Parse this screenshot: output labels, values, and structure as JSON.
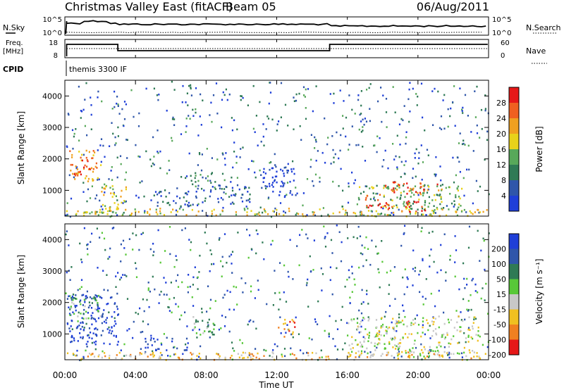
{
  "header": {
    "title": "Christmas Valley East (fitACF)",
    "beam": "Beam 05",
    "date": "06/Aug/2011"
  },
  "strips": {
    "nsky_label": "N.Sky",
    "nsky_ticks": [
      "10^5",
      "10^0"
    ],
    "nsearch_label": "N.Search",
    "nsearch_ticks": [
      "10^5",
      "10^0"
    ],
    "freq_label_1": "Freq.",
    "freq_label_2": "[MHz]",
    "freq_ticks": [
      "18",
      "8"
    ],
    "nave_label": "Nave",
    "nave_ticks": [
      "60",
      "0"
    ],
    "cpid_label": "CPID",
    "cpid_value": "themis 3300 IF"
  },
  "chart_data": [
    {
      "type": "heatmap",
      "name": "power",
      "ylabel": "Slant Range [km]",
      "yticks": [
        "1000",
        "2000",
        "3000",
        "4000"
      ],
      "ylim": [
        180,
        4500
      ],
      "colorbar_label": "Power [dB]",
      "colorbar_ticks": [
        "4",
        "8",
        "12",
        "16",
        "20",
        "24",
        "28"
      ],
      "colors": [
        "#1f3fd8",
        "#2f56aa",
        "#2f7a55",
        "#58a85a",
        "#e8d21a",
        "#f0a020",
        "#f06020",
        "#e61818"
      ],
      "features": [
        {
          "t": [
            0.1,
            3.0
          ],
          "r": [
            200,
            400
          ],
          "level": 3
        },
        {
          "t": [
            0.2,
            2.0
          ],
          "r": [
            1300,
            2300
          ],
          "level": 5
        },
        {
          "t": [
            0.5,
            1.5
          ],
          "r": [
            1500,
            2000
          ],
          "level": 7
        },
        {
          "t": [
            2.0,
            3.5
          ],
          "r": [
            400,
            1200
          ],
          "level": 4
        },
        {
          "t": [
            5.0,
            7.5
          ],
          "r": [
            500,
            1000
          ],
          "level": 1
        },
        {
          "t": [
            7.0,
            8.5
          ],
          "r": [
            1000,
            1600
          ],
          "level": 2
        },
        {
          "t": [
            8.0,
            10.5
          ],
          "r": [
            600,
            1200
          ],
          "level": 1
        },
        {
          "t": [
            11.0,
            13.0
          ],
          "r": [
            800,
            1800
          ],
          "level": 0
        },
        {
          "t": [
            16.5,
            22.5
          ],
          "r": [
            400,
            1200
          ],
          "level": 3
        },
        {
          "t": [
            17.0,
            18.5
          ],
          "r": [
            400,
            900
          ],
          "level": 7
        },
        {
          "t": [
            19.0,
            20.5
          ],
          "r": [
            300,
            700
          ],
          "level": 7
        },
        {
          "t": [
            18.0,
            21.5
          ],
          "r": [
            900,
            1300
          ],
          "level": 6
        },
        {
          "t": [
            0.0,
            24.0
          ],
          "r": [
            200,
            450
          ],
          "level": 4
        }
      ]
    },
    {
      "type": "heatmap",
      "name": "velocity",
      "ylabel": "Slant Range [km]",
      "yticks": [
        "1000",
        "2000",
        "3000",
        "4000"
      ],
      "ylim": [
        180,
        4500
      ],
      "colorbar_label": "Velocity [m s⁻¹]",
      "colorbar_ticks": [
        "200",
        "100",
        "50",
        "15",
        "-15",
        "-50",
        "-100",
        "-200"
      ],
      "colors": [
        "#1f3fd8",
        "#2f56aa",
        "#2f7a55",
        "#58c838",
        "#c8c8c8",
        "#f0c020",
        "#f08020",
        "#e61818"
      ],
      "features": [
        {
          "t": [
            0.1,
            3.0
          ],
          "r": [
            600,
            2300
          ],
          "level": 0
        },
        {
          "t": [
            0.2,
            2.0
          ],
          "r": [
            1500,
            2200
          ],
          "level": 3
        },
        {
          "t": [
            4.5,
            7.0
          ],
          "r": [
            500,
            900
          ],
          "level": 0
        },
        {
          "t": [
            7.0,
            8.5
          ],
          "r": [
            1000,
            1700
          ],
          "level": 3
        },
        {
          "t": [
            12.0,
            13.0
          ],
          "r": [
            900,
            1500
          ],
          "level": 6
        },
        {
          "t": [
            16.0,
            23.5
          ],
          "r": [
            300,
            1600
          ],
          "level": 4
        },
        {
          "t": [
            0.0,
            24.0
          ],
          "r": [
            200,
            450
          ],
          "level": 5
        }
      ]
    }
  ],
  "xaxis": {
    "label": "Time UT",
    "ticks": [
      "00:00",
      "04:00",
      "08:00",
      "12:00",
      "16:00",
      "20:00",
      "00:00"
    ],
    "range_hours": [
      0,
      24
    ]
  }
}
